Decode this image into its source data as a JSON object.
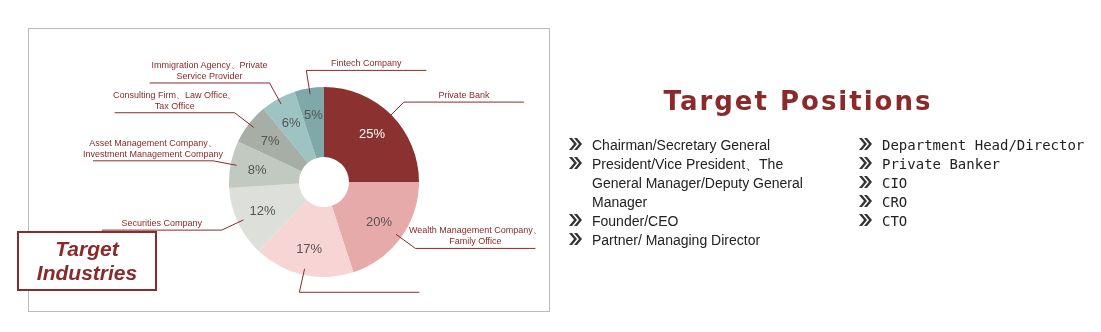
{
  "chart_data": [
    {
      "type": "donut",
      "title": "Target Industries",
      "categories": [
        "Private Bank",
        "Wealth Management Company、Family Office",
        null,
        "Securities Company",
        "Asset Management Company、Investment Management Company",
        "Consulting Firm、Law Office、Tax Office",
        "Immigration Agency、Private Service Provider",
        "Fintech Company"
      ],
      "values": [
        25,
        20,
        17,
        12,
        8,
        7,
        6,
        5
      ],
      "value_labels": [
        "25%",
        "20%",
        "17%",
        "12%",
        "8%",
        "7%",
        "6%",
        "5%"
      ],
      "colors": [
        "#8b3230",
        "#e5aaa9",
        "#f6d5d4",
        "#dcdfda",
        "#c1cac1",
        "#a6aea6",
        "#9ec3c3",
        "#7fa8a8"
      ],
      "legend": false
    },
    {
      "type": "other",
      "title": "Target Positions",
      "annotations": [
        "Chairman/Secretary General",
        "President/Vice President、The General Manager/Deputy General Manager",
        "Founder/CEO",
        "Partner/ Managing Director",
        "Department Head/Director",
        "Private Banker",
        "CIO",
        "CRO",
        "CTO"
      ]
    }
  ]
}
